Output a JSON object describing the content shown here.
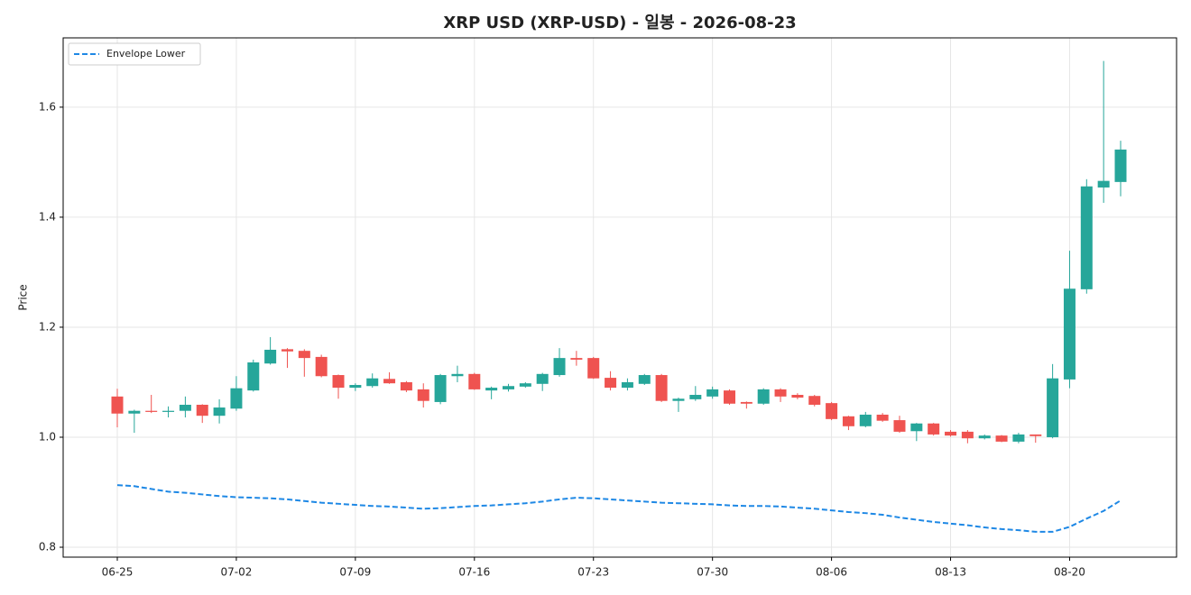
{
  "chart_data": {
    "type": "candlestick",
    "title": "XRP USD (XRP-USD) - 일봉 - 2026-08-23",
    "ylabel": "Price",
    "categories": [
      "06-25",
      null,
      null,
      null,
      null,
      null,
      null,
      "07-02",
      null,
      null,
      null,
      null,
      null,
      null,
      "07-09",
      null,
      null,
      null,
      null,
      null,
      null,
      "07-16",
      null,
      null,
      null,
      null,
      null,
      null,
      "07-23",
      null,
      null,
      null,
      null,
      null,
      null,
      "07-30",
      null,
      null,
      null,
      null,
      null,
      null,
      "08-06",
      null,
      null,
      null,
      null,
      null,
      null,
      "08-13",
      null,
      null,
      null,
      null,
      null,
      null,
      "08-20",
      null,
      null,
      null
    ],
    "open": [
      1.074,
      1.043,
      1.048,
      1.046,
      1.048,
      1.059,
      1.039,
      1.052,
      1.085,
      1.134,
      1.16,
      1.157,
      1.146,
      1.113,
      1.09,
      1.093,
      1.106,
      1.1,
      1.087,
      1.064,
      1.111,
      1.115,
      1.085,
      1.087,
      1.092,
      1.097,
      1.113,
      1.144,
      1.144,
      1.108,
      1.09,
      1.097,
      1.113,
      1.066,
      1.069,
      1.074,
      1.085,
      1.064,
      1.061,
      1.087,
      1.077,
      1.075,
      1.062,
      1.038,
      1.02,
      1.041,
      1.031,
      1.011,
      1.025,
      1.01,
      1.01,
      0.998,
      1.003,
      0.992,
      1.005,
      1.0,
      1.105,
      1.269,
      1.454,
      1.464
    ],
    "high": [
      1.088,
      1.05,
      1.077,
      1.056,
      1.074,
      1.06,
      1.069,
      1.111,
      1.141,
      1.182,
      1.162,
      1.16,
      1.15,
      1.114,
      1.098,
      1.116,
      1.118,
      1.102,
      1.098,
      1.115,
      1.13,
      1.117,
      1.092,
      1.097,
      1.1,
      1.117,
      1.162,
      1.157,
      1.146,
      1.12,
      1.107,
      1.115,
      1.115,
      1.072,
      1.093,
      1.092,
      1.087,
      1.065,
      1.089,
      1.089,
      1.08,
      1.077,
      1.064,
      1.039,
      1.046,
      1.044,
      1.039,
      1.026,
      1.026,
      1.013,
      1.013,
      1.005,
      1.004,
      1.008,
      1.005,
      1.133,
      1.339,
      1.469,
      1.684,
      1.539
    ],
    "low": [
      1.018,
      1.008,
      1.044,
      1.036,
      1.036,
      1.026,
      1.025,
      1.048,
      1.083,
      1.132,
      1.126,
      1.11,
      1.109,
      1.07,
      1.084,
      1.09,
      1.097,
      1.082,
      1.054,
      1.06,
      1.1,
      1.086,
      1.069,
      1.083,
      1.09,
      1.084,
      1.11,
      1.13,
      1.106,
      1.085,
      1.085,
      1.095,
      1.064,
      1.046,
      1.066,
      1.07,
      1.059,
      1.052,
      1.059,
      1.064,
      1.069,
      1.056,
      1.031,
      1.013,
      1.018,
      1.028,
      1.008,
      0.993,
      1.003,
      1.001,
      0.989,
      0.996,
      0.991,
      0.989,
      0.99,
      0.998,
      1.089,
      1.261,
      1.426,
      1.438
    ],
    "close": [
      1.043,
      1.048,
      1.046,
      1.048,
      1.059,
      1.039,
      1.054,
      1.089,
      1.136,
      1.159,
      1.156,
      1.144,
      1.111,
      1.09,
      1.095,
      1.107,
      1.098,
      1.085,
      1.066,
      1.113,
      1.115,
      1.087,
      1.09,
      1.093,
      1.098,
      1.115,
      1.144,
      1.141,
      1.107,
      1.09,
      1.1,
      1.113,
      1.066,
      1.07,
      1.077,
      1.087,
      1.061,
      1.061,
      1.087,
      1.074,
      1.072,
      1.059,
      1.033,
      1.02,
      1.041,
      1.03,
      1.01,
      1.025,
      1.005,
      1.003,
      0.998,
      1.003,
      0.992,
      1.005,
      1.002,
      1.107,
      1.27,
      1.456,
      1.466,
      1.523
    ],
    "up_color": "#26a69a",
    "down_color": "#ef5350",
    "overlays": [
      {
        "name": "Envelope Lower",
        "color": "#1e88e5",
        "dashed": true,
        "values": [
          0.913,
          0.911,
          0.906,
          0.901,
          0.899,
          0.896,
          0.893,
          0.891,
          0.89,
          0.889,
          0.887,
          0.884,
          0.881,
          0.879,
          0.877,
          0.875,
          0.874,
          0.872,
          0.87,
          0.871,
          0.873,
          0.875,
          0.876,
          0.878,
          0.88,
          0.883,
          0.887,
          0.89,
          0.889,
          0.887,
          0.885,
          0.883,
          0.881,
          0.88,
          0.879,
          0.878,
          0.876,
          0.875,
          0.875,
          0.874,
          0.872,
          0.87,
          0.867,
          0.864,
          0.862,
          0.859,
          0.854,
          0.85,
          0.846,
          0.843,
          0.84,
          0.836,
          0.833,
          0.831,
          0.828,
          0.828,
          0.837,
          0.852,
          0.866,
          0.885
        ]
      }
    ],
    "ylim": [
      0.782,
      1.726
    ],
    "yticks": [
      0.8,
      {
        "value": 1,
        "label": "1.0"
      },
      1.2,
      1.4,
      1.6
    ],
    "grid": true,
    "legend": "upper left"
  }
}
